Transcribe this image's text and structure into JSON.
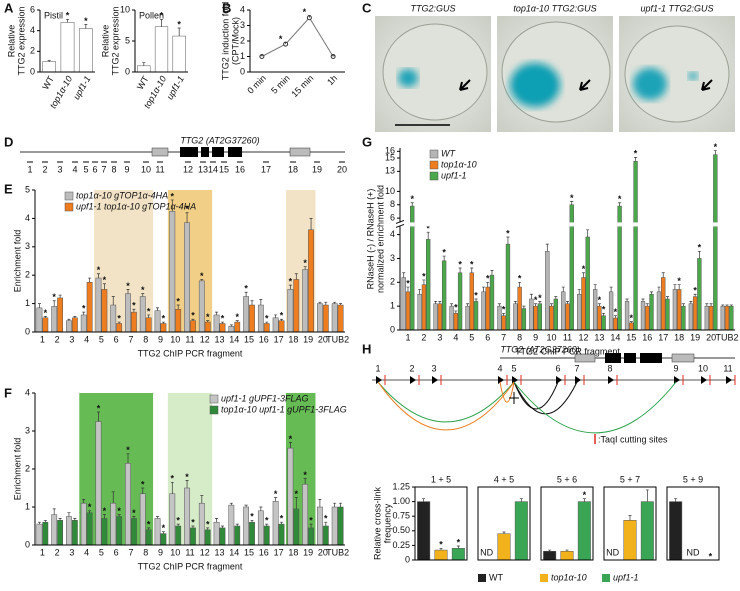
{
  "panels": [
    "A",
    "B",
    "C",
    "D",
    "E",
    "F",
    "G",
    "H"
  ],
  "images": {
    "labels": [
      "TTG2:GUS",
      "top1α-10 TTG2:GUS",
      "upf1-1 TTG2:GUS"
    ]
  },
  "gene_d": {
    "title": "TTG2 (AT2G37260)",
    "fragments": [
      "1",
      "2",
      "3",
      "4",
      "5",
      "6",
      "7",
      "8",
      "9",
      "10",
      "11",
      "12",
      "13",
      "14",
      "15",
      "16",
      "17",
      "18",
      "19",
      "20"
    ]
  },
  "gene_h": {
    "title": "TTG2 (AT2G37260)",
    "fragments": [
      "1",
      "2",
      "3",
      "4",
      "5",
      "6",
      "7",
      "8",
      "9",
      "10",
      "11"
    ],
    "taqi_label": ":TaqI cutting sites"
  },
  "cross_link_legend": [
    {
      "name": "WT",
      "color": "#222222"
    },
    {
      "name": "top1α-10",
      "color": "#f2b21c"
    },
    {
      "name": "upf1-1",
      "color": "#3aa655"
    }
  ],
  "chart_data": [
    {
      "type": "bar",
      "title": "Pistil",
      "ylabel": [
        "Relative",
        "TTG2 expression"
      ],
      "categories": [
        "WT",
        "top1α-10",
        "upf1-1"
      ],
      "values": [
        1,
        4.8,
        4.2
      ],
      "errors": [
        0.1,
        0.3,
        0.4
      ],
      "stars": [
        null,
        "*",
        "*"
      ],
      "color": "#ffffff",
      "ylim": [
        0,
        6
      ],
      "yticks": [
        0,
        2,
        4,
        6
      ]
    },
    {
      "type": "bar",
      "title": "Pollen",
      "ylabel": [
        "Relative",
        "TTG2 expression"
      ],
      "categories": [
        "WT",
        "top1α-10",
        "upf1-1"
      ],
      "values": [
        1,
        7.3,
        5.8
      ],
      "errors": [
        0.5,
        1.2,
        1.3
      ],
      "stars": [
        null,
        "*",
        "*"
      ],
      "color": "#ffffff",
      "ylim": [
        0,
        10
      ],
      "yticks": [
        0,
        5,
        10
      ]
    },
    {
      "type": "line",
      "ylabel": [
        "TTG2 induction fold",
        "(CPT/Mock)"
      ],
      "categories": [
        "0 min",
        "5 min",
        "15 min",
        "1h"
      ],
      "values": [
        1,
        1.8,
        3.5,
        1
      ],
      "errors": [
        0.08,
        0.1,
        0.15,
        0.05
      ],
      "stars": [
        null,
        "*",
        "*",
        null
      ],
      "color": "#777777",
      "ylim": [
        0,
        4
      ],
      "yticks": [
        0,
        1,
        2,
        3,
        4
      ]
    },
    {
      "type": "bar",
      "ylabel": [
        "Enrichment fold"
      ],
      "xlabel": "TTG2 ChIP PCR fragment",
      "legend": "top-left",
      "categories": [
        "1",
        "2",
        "3",
        "4",
        "5",
        "6",
        "7",
        "8",
        "9",
        "10",
        "11",
        "12",
        "13",
        "14",
        "15",
        "16",
        "17",
        "18",
        "19",
        "20",
        "TUB2"
      ],
      "highlights": [
        {
          "from": 4,
          "to": 7,
          "color": "#f3e3c6"
        },
        {
          "from": 9,
          "to": 11,
          "color": "#f1cf86"
        },
        {
          "from": 17,
          "to": 18,
          "color": "#f3e3c6"
        }
      ],
      "series": [
        {
          "name": "top1α-10 gTOP1α-4HA",
          "color": "#bdbdbd",
          "star_color": "#111111",
          "values": [
            0.85,
            0.9,
            0.4,
            0.6,
            1.9,
            0.95,
            1.35,
            1.25,
            0.75,
            4.25,
            3.85,
            1.8,
            0.6,
            0.2,
            1.25,
            0.95,
            0.5,
            1.5,
            2.2,
            1.0,
            1.0
          ],
          "errors": [
            0.15,
            0.2,
            0.05,
            0.1,
            0.15,
            0.3,
            0.15,
            0.1,
            0.1,
            0.4,
            0.35,
            0.05,
            0.1,
            0.05,
            0.15,
            0.2,
            0.1,
            0.15,
            0.1,
            0.05,
            0.05
          ],
          "stars": [
            null,
            "*",
            null,
            "*",
            "*",
            null,
            "*",
            "*",
            null,
            "*",
            "*",
            "*",
            null,
            null,
            "*",
            null,
            null,
            "*",
            "*",
            null,
            null
          ]
        },
        {
          "name": "upf1-1 top1α-10 gTOP1α-4HA",
          "color": "#ee7d1f",
          "star_color": "#e0281e",
          "values": [
            0.5,
            1.2,
            0.5,
            1.75,
            1.5,
            0.3,
            0.7,
            0.5,
            0.3,
            0.8,
            0.4,
            0.35,
            0.3,
            0.35,
            0.95,
            0.3,
            0.4,
            1.85,
            3.6,
            0.95,
            0.95
          ],
          "errors": [
            0.05,
            0.1,
            0.05,
            0.15,
            0.2,
            0.05,
            0.1,
            0.1,
            0.05,
            0.15,
            0.05,
            0.05,
            0.05,
            0.05,
            0.15,
            0.05,
            0.05,
            0.2,
            0.4,
            0.1,
            0.05
          ],
          "stars": [
            "*",
            null,
            null,
            null,
            "*",
            "*",
            "*",
            "*",
            "*",
            "*",
            "*",
            "*",
            "*",
            "*",
            null,
            "*",
            "*",
            null,
            null,
            null,
            null
          ]
        }
      ],
      "ylim": [
        0,
        5
      ],
      "yticks": [
        0,
        1,
        2,
        3,
        4,
        5
      ]
    },
    {
      "type": "bar",
      "ylabel": [
        "Enrichment fold"
      ],
      "xlabel": "TTG2 ChIP PCR fragment",
      "legend": "top-right",
      "categories": [
        "1",
        "2",
        "3",
        "4",
        "5",
        "6",
        "7",
        "8",
        "9",
        "10",
        "11",
        "12",
        "13",
        "14",
        "15",
        "16",
        "17",
        "18",
        "19",
        "20",
        "TUB2"
      ],
      "highlights": [
        {
          "from": 3,
          "to": 7,
          "color": "#66bb55"
        },
        {
          "from": 9,
          "to": 11,
          "color": "#d6ecc8"
        },
        {
          "from": 17,
          "to": 18,
          "color": "#66bb55"
        }
      ],
      "series": [
        {
          "name": "upf1-1 gUPF1-3FLAG",
          "color": "#c4c4c4",
          "star_color": "#111111",
          "values": [
            0.55,
            0.8,
            0.75,
            1.1,
            3.25,
            1.1,
            2.15,
            1.35,
            0.7,
            1.35,
            1.5,
            1.1,
            0.6,
            1.05,
            1.0,
            0.9,
            1.15,
            2.55,
            1.6,
            1.0,
            1.0
          ],
          "errors": [
            0.05,
            0.15,
            0.1,
            0.1,
            0.25,
            0.3,
            0.25,
            0.15,
            0.05,
            0.3,
            0.2,
            0.2,
            0.1,
            0.05,
            0.05,
            0.1,
            0.1,
            0.15,
            0.15,
            0.2,
            0.1
          ],
          "stars": [
            null,
            null,
            null,
            null,
            "*",
            null,
            "*",
            "*",
            null,
            "*",
            "*",
            null,
            null,
            null,
            null,
            null,
            "*",
            "*",
            "*",
            null,
            null
          ]
        },
        {
          "name": "top1α-10 upf1-1 gUPF1-3FLAG",
          "color": "#2f8a3a",
          "star_color": "#e0281e",
          "values": [
            0.6,
            0.65,
            0.65,
            0.85,
            0.7,
            0.75,
            0.7,
            0.4,
            0.3,
            0.5,
            0.45,
            0.4,
            0.45,
            0.5,
            0.6,
            0.5,
            0.55,
            0.95,
            0.45,
            0.5,
            1.0
          ],
          "errors": [
            0.05,
            0.05,
            0.05,
            0.05,
            0.1,
            0.05,
            0.05,
            0.05,
            0.05,
            0.05,
            0.05,
            0.05,
            0.05,
            0.05,
            0.05,
            0.05,
            0.05,
            0.3,
            0.1,
            0.1,
            0.1
          ],
          "stars": [
            null,
            null,
            null,
            "*",
            "*",
            "*",
            "*",
            "*",
            "*",
            "*",
            "*",
            "*",
            null,
            null,
            "*",
            "*",
            "*",
            "*",
            "*",
            "*",
            null
          ]
        }
      ],
      "ylim": [
        0,
        4
      ],
      "yticks": [
        0,
        1,
        2,
        3,
        4
      ]
    },
    {
      "type": "bar",
      "ylabel": [
        "RNaseH (-) / RNaseH (+)",
        "normalized enrichment fold"
      ],
      "xlabel": "TTG2 ChIP PCR fragment",
      "legend": "top-left",
      "categories": [
        "1",
        "2",
        "3",
        "4",
        "5",
        "6",
        "7",
        "8",
        "9",
        "10",
        "11",
        "12",
        "13",
        "14",
        "15",
        "16",
        "17",
        "18",
        "19",
        "20",
        "TUB2"
      ],
      "series": [
        {
          "name": "WT",
          "color": "#b5b5b5",
          "values": [
            2.2,
            1.5,
            1.1,
            1.0,
            1.0,
            1.6,
            1.0,
            1.1,
            1.3,
            3.3,
            1.6,
            1.5,
            1.7,
            1.6,
            1.2,
            1.2,
            1.6,
            1.7,
            1.1,
            1.0,
            1.0
          ],
          "errors": [
            0.2,
            0.2,
            0.1,
            0.1,
            0.1,
            0.2,
            0.1,
            0.1,
            0.2,
            0.3,
            0.2,
            0.2,
            0.2,
            0.2,
            0.1,
            0.1,
            0.2,
            0.2,
            0.1,
            0.1,
            0.05
          ]
        },
        {
          "name": "top1α-10",
          "color": "#ee7d1f",
          "star_color": "#e0281e",
          "values": [
            1.6,
            1.9,
            1.1,
            0.7,
            2.4,
            1.8,
            0.6,
            1.8,
            1.0,
            1.0,
            1.1,
            2.2,
            1.0,
            0.5,
            0.3,
            1.0,
            2.2,
            1.7,
            1.4,
            1.0,
            1.0
          ],
          "errors": [
            0.2,
            0.2,
            0.1,
            0.1,
            0.2,
            0.2,
            0.1,
            0.2,
            0.1,
            0.1,
            0.1,
            0.2,
            0.1,
            0.1,
            0.05,
            0.1,
            0.2,
            0.2,
            0.1,
            0.1,
            0.05
          ],
          "stars": [
            "*",
            "*",
            null,
            "*",
            "*",
            "*",
            "*",
            "*",
            "*",
            null,
            null,
            "*",
            "*",
            "*",
            "*",
            null,
            null,
            "*",
            "*",
            null,
            null
          ]
        },
        {
          "name": "upf1-1",
          "color": "#4aa84a",
          "star_color": "#e0281e",
          "values": [
            7.8,
            3.8,
            2.9,
            2.4,
            1.2,
            2.3,
            3.6,
            0.9,
            1.1,
            1.3,
            8.0,
            3.9,
            0.6,
            7.8,
            14.5,
            1.5,
            1.3,
            1.0,
            3.0,
            15.5,
            1.0
          ],
          "errors": [
            0.5,
            0.3,
            0.2,
            0.2,
            0.1,
            0.2,
            0.3,
            0.1,
            0.1,
            0.1,
            0.5,
            0.3,
            0.1,
            0.5,
            0.6,
            0.1,
            0.1,
            0.1,
            0.3,
            0.6,
            0.05
          ],
          "stars": [
            "*",
            "*",
            "*",
            "*",
            "*",
            null,
            "*",
            null,
            "*",
            null,
            "*",
            "*",
            "*",
            "*",
            "*",
            null,
            null,
            null,
            "*",
            "*",
            null
          ]
        }
      ],
      "ylim": [
        0,
        16.5
      ],
      "axis_break": [
        4.3,
        5.5
      ],
      "yticks": [
        0,
        1,
        2,
        3,
        4,
        6,
        8,
        10,
        13,
        15,
        16
      ]
    },
    {
      "type": "bar",
      "title": "1 + 5",
      "ylabel": [
        "Relative cross-link",
        "frequency"
      ],
      "values": [
        1.0,
        0.17,
        0.2
      ],
      "errors": [
        0.05,
        0.03,
        0.04
      ],
      "stars": [
        null,
        "*",
        "*"
      ],
      "colors": [
        "#222222",
        "#f2b21c",
        "#3aa655"
      ],
      "ylim": [
        0,
        1.25
      ],
      "yticks": [
        0,
        0.25,
        {
          "value": 0.5,
          "label": "0.50"
        },
        0.75,
        {
          "value": 1,
          "label": "1.00"
        },
        1.25
      ]
    },
    {
      "type": "bar",
      "title": "4 + 5",
      "values": [
        null,
        0.45,
        1.0
      ],
      "value_labels": [
        "ND",
        null,
        null
      ],
      "errors": [
        null,
        0.03,
        0.05
      ],
      "colors": [
        "#222222",
        "#f2b21c",
        "#3aa655"
      ],
      "ylim": [
        0,
        1.25
      ]
    },
    {
      "type": "bar",
      "title": "5 + 6",
      "values": [
        0.15,
        0.15,
        1.0
      ],
      "errors": [
        0.02,
        0.02,
        0.05
      ],
      "stars": [
        null,
        null,
        "*"
      ],
      "colors": [
        "#222222",
        "#f2b21c",
        "#3aa655"
      ],
      "ylim": [
        0,
        1.25
      ]
    },
    {
      "type": "bar",
      "title": "5 + 7",
      "values": [
        null,
        0.68,
        1.0
      ],
      "value_labels": [
        "ND",
        null,
        null
      ],
      "errors": [
        null,
        0.08,
        0.2
      ],
      "colors": [
        "#222222",
        "#f2b21c",
        "#3aa655"
      ],
      "ylim": [
        0,
        1.25
      ]
    },
    {
      "type": "bar",
      "title": "5 + 9",
      "values": [
        1.0,
        null,
        null
      ],
      "value_labels": [
        null,
        "ND",
        null
      ],
      "errors": [
        0.05,
        null,
        null
      ],
      "stars": [
        null,
        null,
        "*"
      ],
      "colors": [
        "#222222",
        "#f2b21c",
        "#3aa655"
      ],
      "ylim": [
        0,
        1.25
      ]
    }
  ]
}
